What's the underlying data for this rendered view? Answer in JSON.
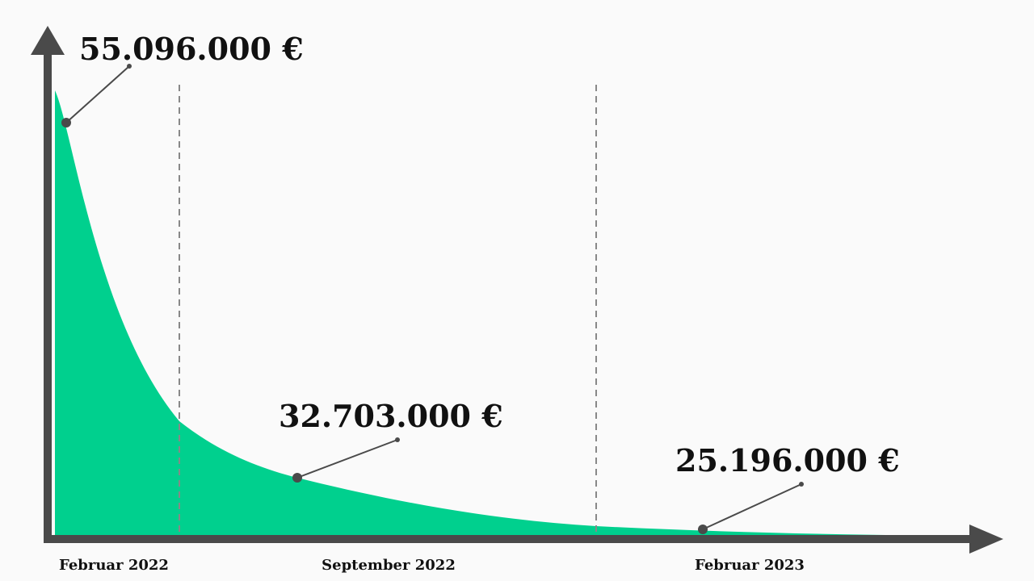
{
  "annotations": [
    "55.096.000 €",
    "32.703.000 €",
    "25.196.000 €"
  ],
  "x_labels": [
    "Februar 2022",
    "September 2022",
    "Februar 2023"
  ]
}
